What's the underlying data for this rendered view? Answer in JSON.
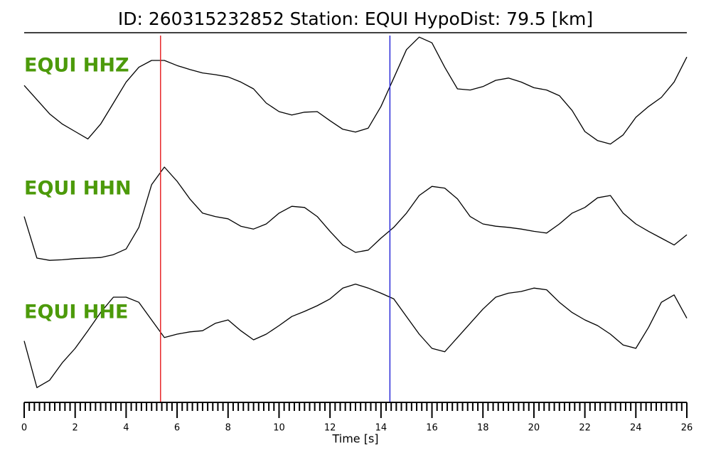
{
  "chart_data": {
    "type": "line",
    "title": "ID: 260315232852   Station: EQUI   HypoDist:     79.5 [km]",
    "xlabel": "Time [s]",
    "xlim": [
      0,
      26
    ],
    "xticks": [
      0,
      2,
      4,
      6,
      8,
      10,
      12,
      14,
      16,
      18,
      20,
      22,
      24,
      26
    ],
    "xminorticks": [
      0,
      0.2,
      0.4,
      0.6,
      0.8,
      1,
      1.2,
      1.4,
      1.6,
      1.8,
      2,
      2.2,
      2.4,
      2.6,
      2.8,
      3,
      3.2,
      3.4,
      3.6,
      3.8,
      4,
      4.2,
      4.4,
      4.6,
      4.8,
      5,
      5.2,
      5.4,
      5.6,
      5.8,
      6,
      6.2,
      6.4,
      6.6,
      6.8,
      7,
      7.2,
      7.4,
      7.6,
      7.8,
      8,
      8.2,
      8.4,
      8.6,
      8.8,
      9,
      9.2,
      9.4,
      9.6,
      9.8,
      10,
      10.2,
      10.4,
      10.6,
      10.8,
      11,
      11.2,
      11.4,
      11.6,
      11.8,
      12,
      12.2,
      12.4,
      12.6,
      12.8,
      13,
      13.2,
      13.4,
      13.6,
      13.8,
      14,
      14.2,
      14.4,
      14.6,
      14.8,
      15,
      15.2,
      15.4,
      15.6,
      15.8,
      16,
      16.2,
      16.4,
      16.6,
      16.8,
      17,
      17.2,
      17.4,
      17.6,
      17.8,
      18,
      18.2,
      18.4,
      18.6,
      18.8,
      19,
      19.2,
      19.4,
      19.6,
      19.8,
      20,
      20.2,
      20.4,
      20.6,
      20.8,
      21,
      21.2,
      21.4,
      21.6,
      21.8,
      22,
      22.2,
      22.4,
      22.6,
      22.8,
      23,
      23.2,
      23.4,
      23.6,
      23.8,
      24,
      24.2,
      24.4,
      24.6,
      24.8,
      25,
      25.2,
      25.4,
      25.6,
      25.8,
      26
    ],
    "ylim": [
      -1,
      1
    ],
    "label_color": "#4c9a0a",
    "x": [
      0,
      0.5,
      1,
      1.5,
      2,
      2.5,
      3,
      3.5,
      4,
      4.5,
      5,
      5.5,
      6,
      6.5,
      7,
      7.5,
      8,
      8.5,
      9,
      9.5,
      10,
      10.5,
      11,
      11.5,
      12,
      12.5,
      13,
      13.5,
      14,
      14.5,
      15,
      15.5,
      16,
      16.5,
      17,
      17.5,
      18,
      18.5,
      19,
      19.5,
      20,
      20.5,
      21,
      21.5,
      22,
      22.5,
      23,
      23.5,
      24,
      24.5,
      25,
      25.5,
      26
    ],
    "series": [
      {
        "name": "EQUI HHZ",
        "color": "#000000",
        "values": [
          0.06,
          -0.19,
          -0.44,
          -0.62,
          -0.75,
          -0.88,
          -0.62,
          -0.25,
          0.12,
          0.38,
          0.5,
          0.5,
          0.41,
          0.34,
          0.28,
          0.25,
          0.21,
          0.12,
          0,
          -0.25,
          -0.4,
          -0.46,
          -0.41,
          -0.4,
          -0.56,
          -0.71,
          -0.76,
          -0.69,
          -0.31,
          0.19,
          0.69,
          0.91,
          0.81,
          0.38,
          0,
          -0.02,
          0.04,
          0.15,
          0.19,
          0.12,
          0.02,
          -0.02,
          -0.12,
          -0.38,
          -0.75,
          -0.91,
          -0.97,
          -0.81,
          -0.5,
          -0.31,
          -0.15,
          0.12,
          0.56
        ]
      },
      {
        "name": "EQUI HHN",
        "color": "#000000",
        "values": [
          -0.12,
          -0.85,
          -0.89,
          -0.88,
          -0.86,
          -0.85,
          -0.84,
          -0.79,
          -0.69,
          -0.31,
          0.44,
          0.75,
          0.5,
          0.19,
          -0.06,
          -0.12,
          -0.16,
          -0.29,
          -0.34,
          -0.25,
          -0.06,
          0.06,
          0.04,
          -0.12,
          -0.38,
          -0.62,
          -0.75,
          -0.71,
          -0.5,
          -0.31,
          -0.06,
          0.25,
          0.41,
          0.38,
          0.19,
          -0.12,
          -0.25,
          -0.29,
          -0.31,
          -0.34,
          -0.38,
          -0.41,
          -0.25,
          -0.06,
          0.04,
          0.21,
          0.25,
          -0.06,
          -0.25,
          -0.38,
          -0.5,
          -0.62,
          -0.44
        ]
      },
      {
        "name": "EQUI HHE",
        "color": "#000000",
        "values": [
          -0.12,
          -0.94,
          -0.81,
          -0.5,
          -0.25,
          0.06,
          0.38,
          0.65,
          0.65,
          0.56,
          0.25,
          -0.06,
          0,
          0.04,
          0.06,
          0.19,
          0.25,
          0.06,
          -0.1,
          0,
          0.15,
          0.31,
          0.4,
          0.5,
          0.62,
          0.81,
          0.88,
          0.81,
          0.72,
          0.62,
          0.31,
          0,
          -0.25,
          -0.31,
          -0.06,
          0.19,
          0.44,
          0.65,
          0.72,
          0.75,
          0.81,
          0.78,
          0.56,
          0.38,
          0.25,
          0.15,
          0,
          -0.19,
          -0.25,
          0.12,
          0.56,
          0.69,
          0.28
        ]
      }
    ],
    "vlines": [
      {
        "x": 5.35,
        "color": "#e8262a"
      },
      {
        "x": 14.35,
        "color": "#2a2ad8"
      }
    ]
  }
}
